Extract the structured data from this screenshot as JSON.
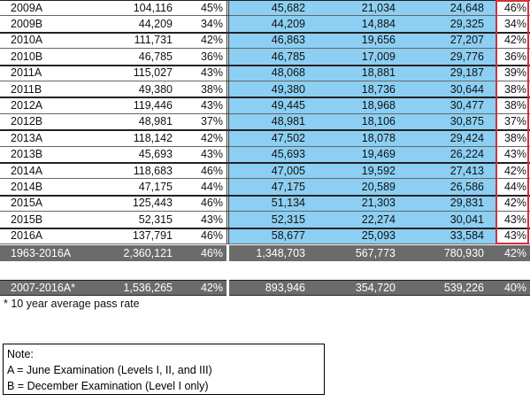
{
  "table": {
    "rows": [
      [
        "2009A",
        "104,116",
        "45%",
        "45,682",
        "21,034",
        "24,648",
        "46%"
      ],
      [
        "2009B",
        "44,209",
        "34%",
        "44,209",
        "14,884",
        "29,325",
        "34%"
      ],
      [
        "2010A",
        "111,731",
        "42%",
        "46,863",
        "19,656",
        "27,207",
        "42%"
      ],
      [
        "2010B",
        "46,785",
        "36%",
        "46,785",
        "17,009",
        "29,776",
        "36%"
      ],
      [
        "2011A",
        "115,027",
        "43%",
        "48,068",
        "18,881",
        "29,187",
        "39%"
      ],
      [
        "2011B",
        "49,380",
        "38%",
        "49,380",
        "18,736",
        "30,644",
        "38%"
      ],
      [
        "2012A",
        "119,446",
        "43%",
        "49,445",
        "18,968",
        "30,477",
        "38%"
      ],
      [
        "2012B",
        "48,981",
        "37%",
        "48,981",
        "18,106",
        "30,875",
        "37%"
      ],
      [
        "2013A",
        "118,142",
        "42%",
        "47,502",
        "18,078",
        "29,424",
        "38%"
      ],
      [
        "2013B",
        "45,693",
        "43%",
        "45,693",
        "19,469",
        "26,224",
        "43%"
      ],
      [
        "2014A",
        "118,683",
        "46%",
        "47,005",
        "19,592",
        "27,413",
        "42%"
      ],
      [
        "2014B",
        "47,175",
        "44%",
        "47,175",
        "20,589",
        "26,586",
        "44%"
      ],
      [
        "2015A",
        "125,443",
        "46%",
        "51,134",
        "21,303",
        "29,831",
        "42%"
      ],
      [
        "2015B",
        "52,315",
        "43%",
        "52,315",
        "22,274",
        "30,041",
        "43%"
      ],
      [
        "2016A",
        "137,791",
        "46%",
        "58,677",
        "25,093",
        "33,584",
        "43%"
      ]
    ],
    "total_row": [
      "1963-2016A",
      "2,360,121",
      "46%",
      "1,348,703",
      "567,773",
      "780,930",
      "42%"
    ],
    "ten_year_row": [
      "2007-2016A*",
      "1,536,265",
      "42%",
      "893,946",
      "354,720",
      "539,226",
      "40%"
    ],
    "footnote": "* 10 year average pass rate"
  },
  "note": {
    "title": "Note:",
    "lines": [
      "A = June Examination (Levels I, II, and III)",
      "B = December Examination (Level I only)"
    ]
  }
}
